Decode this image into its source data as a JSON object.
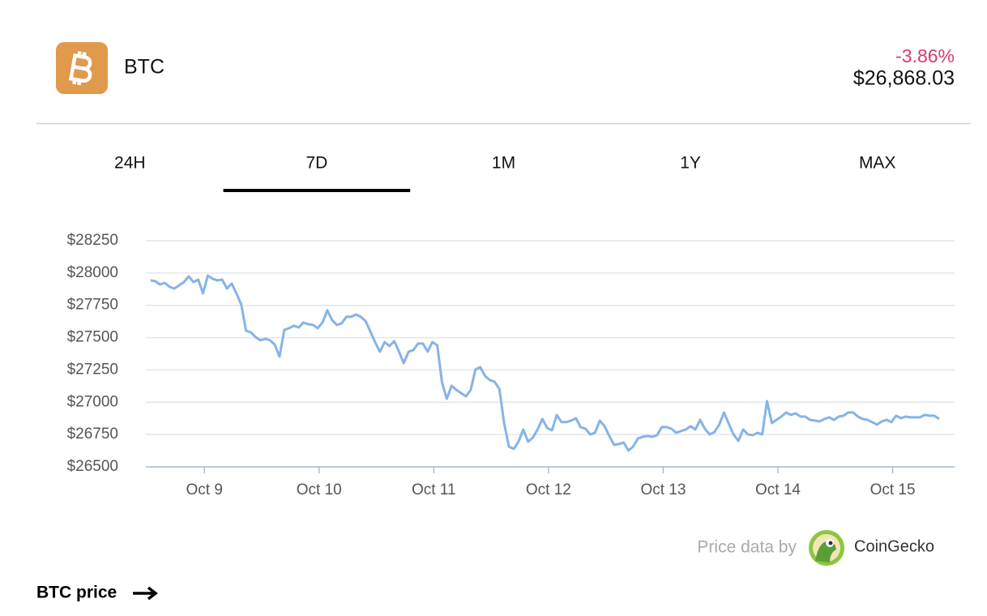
{
  "header": {
    "symbol": "BTC",
    "change": "-3.86%",
    "price": "$26,868.03"
  },
  "tabs": [
    "24H",
    "7D",
    "1M",
    "1Y",
    "MAX"
  ],
  "active_tab": 1,
  "chart_data": {
    "type": "line",
    "x": [
      8.53,
      8.572,
      8.613,
      8.655,
      8.697,
      8.738,
      8.78,
      8.822,
      8.863,
      8.905,
      8.947,
      8.988,
      9.03,
      9.072,
      9.113,
      9.155,
      9.197,
      9.238,
      9.28,
      9.322,
      9.363,
      9.405,
      9.447,
      9.488,
      9.53,
      9.572,
      9.613,
      9.655,
      9.697,
      9.738,
      9.78,
      9.822,
      9.863,
      9.905,
      9.947,
      9.988,
      10.03,
      10.072,
      10.113,
      10.155,
      10.197,
      10.238,
      10.28,
      10.322,
      10.363,
      10.405,
      10.447,
      10.488,
      10.53,
      10.572,
      10.613,
      10.655,
      10.697,
      10.738,
      10.78,
      10.822,
      10.863,
      10.905,
      10.947,
      10.988,
      11.03,
      11.072,
      11.113,
      11.155,
      11.197,
      11.238,
      11.28,
      11.322,
      11.363,
      11.405,
      11.447,
      11.488,
      11.53,
      11.572,
      11.613,
      11.655,
      11.697,
      11.738,
      11.78,
      11.822,
      11.863,
      11.905,
      11.947,
      11.988,
      12.03,
      12.072,
      12.113,
      12.155,
      12.197,
      12.238,
      12.28,
      12.322,
      12.363,
      12.405,
      12.447,
      12.488,
      12.53,
      12.572,
      12.613,
      12.655,
      12.697,
      12.738,
      12.78,
      12.822,
      12.863,
      12.905,
      12.947,
      12.988,
      13.03,
      13.072,
      13.113,
      13.155,
      13.197,
      13.238,
      13.28,
      13.322,
      13.363,
      13.405,
      13.447,
      13.488,
      13.53,
      13.572,
      13.613,
      13.655,
      13.697,
      13.738,
      13.78,
      13.822,
      13.863,
      13.905,
      13.947,
      13.988,
      14.03,
      14.072,
      14.113,
      14.155,
      14.197,
      14.238,
      14.28,
      14.322,
      14.363,
      14.405,
      14.447,
      14.488,
      14.53,
      14.572,
      14.613,
      14.655,
      14.697,
      14.738,
      14.78,
      14.822,
      14.863,
      14.905,
      14.947,
      14.988,
      15.03,
      15.072,
      15.113,
      15.155,
      15.197,
      15.238,
      15.28,
      15.322,
      15.363,
      15.405
    ],
    "series": [
      {
        "name": "BTC",
        "color": "#86b3e6",
        "values": [
          27943,
          27937,
          27911,
          27924,
          27893,
          27880,
          27905,
          27930,
          27974,
          27930,
          27949,
          27842,
          27980,
          27955,
          27943,
          27949,
          27880,
          27918,
          27842,
          27755,
          27554,
          27541,
          27504,
          27479,
          27491,
          27479,
          27447,
          27353,
          27560,
          27573,
          27592,
          27579,
          27617,
          27604,
          27598,
          27573,
          27617,
          27711,
          27636,
          27598,
          27610,
          27661,
          27661,
          27679,
          27661,
          27629,
          27548,
          27466,
          27391,
          27466,
          27435,
          27473,
          27391,
          27303,
          27391,
          27404,
          27454,
          27454,
          27391,
          27466,
          27441,
          27153,
          27027,
          27128,
          27096,
          27071,
          27046,
          27096,
          27253,
          27272,
          27203,
          27172,
          27159,
          27103,
          26839,
          26657,
          26639,
          26695,
          26789,
          26695,
          26726,
          26789,
          26871,
          26802,
          26783,
          26902,
          26846,
          26846,
          26858,
          26877,
          26808,
          26795,
          26751,
          26764,
          26858,
          26814,
          26739,
          26670,
          26676,
          26689,
          26626,
          26657,
          26720,
          26733,
          26739,
          26733,
          26745,
          26808,
          26808,
          26795,
          26764,
          26777,
          26789,
          26814,
          26789,
          26864,
          26795,
          26751,
          26770,
          26827,
          26921,
          26833,
          26751,
          26701,
          26789,
          26751,
          26745,
          26764,
          26751,
          27009,
          26839,
          26864,
          26889,
          26921,
          26902,
          26914,
          26889,
          26889,
          26864,
          26858,
          26852,
          26871,
          26883,
          26864,
          26889,
          26896,
          26921,
          26921,
          26889,
          26871,
          26864,
          26846,
          26827,
          26852,
          26864,
          26846,
          26896,
          26877,
          26889,
          26883,
          26883,
          26883,
          26902,
          26896,
          26896,
          26871
        ]
      }
    ],
    "xlim": [
      8.49,
      15.54
    ],
    "xticks": [
      {
        "value": 9,
        "label": "Oct 9"
      },
      {
        "value": 10,
        "label": "Oct 10"
      },
      {
        "value": 11,
        "label": "Oct 11"
      },
      {
        "value": 12,
        "label": "Oct 12"
      },
      {
        "value": 13,
        "label": "Oct 13"
      },
      {
        "value": 14,
        "label": "Oct 14"
      },
      {
        "value": 15,
        "label": "Oct 15"
      }
    ],
    "ylim": [
      26500,
      28250
    ],
    "yticks": [
      {
        "value": 26500,
        "label": "$26500"
      },
      {
        "value": 26750,
        "label": "$26750"
      },
      {
        "value": 27000,
        "label": "$27000"
      },
      {
        "value": 27250,
        "label": "$27250"
      },
      {
        "value": 27500,
        "label": "$27500"
      },
      {
        "value": 27750,
        "label": "$27750"
      },
      {
        "value": 28000,
        "label": "$28000"
      },
      {
        "value": 28250,
        "label": "$28250"
      }
    ],
    "grid": true
  },
  "footer": {
    "credit": "Price data by",
    "provider": "CoinGecko",
    "link": "BTC price"
  }
}
